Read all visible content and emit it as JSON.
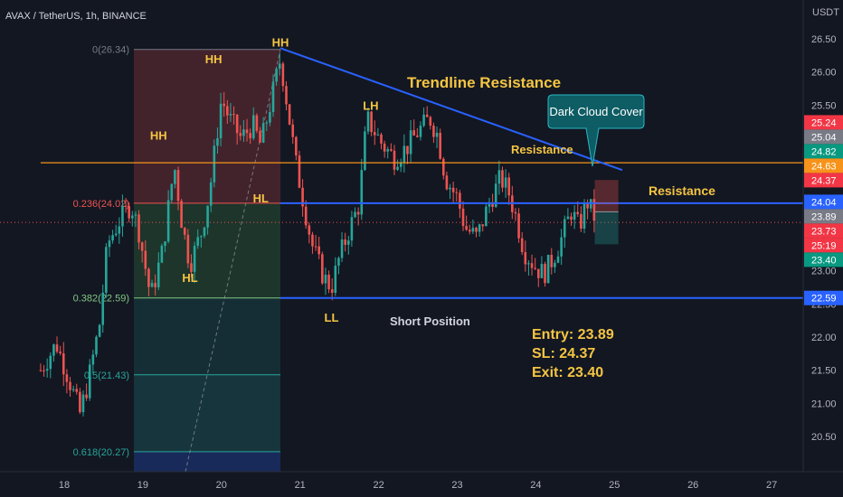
{
  "header": {
    "title": "AVAX / TetherUS, 1h, BINANCE"
  },
  "axis": {
    "unit": "USDT"
  },
  "colors": {
    "bg": "#131722",
    "up": "#26a69a",
    "down": "#ef5350",
    "trendline": "#2962ff",
    "orange": "#f7931a",
    "annotation": "#f5c542",
    "callout": "#0e5c64"
  },
  "chart_data": {
    "type": "candlestick",
    "ylim": [
      20.2,
      26.75
    ],
    "y_ticks": [
      "26.50",
      "26.00",
      "25.50",
      "25.00",
      "24.50",
      "24.00",
      "23.50",
      "23.00",
      "22.50",
      "22.00",
      "21.50",
      "21.00",
      "20.50"
    ],
    "x_ticks": [
      "18",
      "19",
      "20",
      "21",
      "22",
      "23",
      "24",
      "25",
      "26",
      "27"
    ],
    "x_range_days": [
      17.7,
      27.45
    ],
    "fib_levels": [
      {
        "label": "0(26.34)",
        "value": 26.34,
        "color": "#787b86"
      },
      {
        "label": "0.236(24.02)",
        "value": 24.02,
        "color": "#ef5350"
      },
      {
        "label": "0.382(22.59)",
        "value": 22.59,
        "color": "#81c784"
      },
      {
        "label": "0.5(21.43)",
        "value": 21.43,
        "color": "#26a69a"
      },
      {
        "label": "0.618(20.27)",
        "value": 20.27,
        "color": "#26a69a"
      }
    ],
    "trendline": {
      "start": {
        "day": 20.75,
        "price": 26.36
      },
      "end": {
        "day": 25.1,
        "price": 24.52
      }
    },
    "horizontal_lines": [
      {
        "name": "resistance",
        "value": 24.02,
        "color": "#2962ff",
        "from_day": 20.75
      },
      {
        "name": "support",
        "value": 22.59,
        "color": "#2962ff",
        "from_day": 20.75
      },
      {
        "name": "orange-level",
        "value": 24.63,
        "color": "#f7931a",
        "from_day": 17.7
      }
    ],
    "position": {
      "type": "Short Position",
      "entry": 23.89,
      "stop_loss": 24.37,
      "target": 23.4,
      "from_day": 24.75,
      "to_day": 25.05
    },
    "price_badges": [
      {
        "label": "25.24",
        "value": 25.24,
        "color": "#f23645"
      },
      {
        "label": "25.04",
        "value": 25.04,
        "color": "#787b86"
      },
      {
        "label": "24.82",
        "value": 24.82,
        "color": "#089981"
      },
      {
        "label": "24.63",
        "value": 24.63,
        "color": "#f7931a"
      },
      {
        "label": "24.37",
        "value": 24.37,
        "color": "#f23645"
      },
      {
        "label": "24.04",
        "value": 24.04,
        "color": "#2962ff"
      },
      {
        "label": "23.89",
        "value": 23.89,
        "color": "#787b86"
      },
      {
        "label": "23.73",
        "value": 23.73,
        "color": "#f23645"
      },
      {
        "label": "25:19",
        "value": 23.58,
        "color": "#f23645"
      },
      {
        "label": "23.40",
        "value": 23.4,
        "color": "#089981"
      },
      {
        "label": "22.59",
        "value": 22.59,
        "color": "#2962ff"
      }
    ],
    "swing_labels": [
      {
        "text": "HH",
        "day": 19.9,
        "price": 26.2
      },
      {
        "text": "HH",
        "day": 20.75,
        "price": 26.45
      },
      {
        "text": "HH",
        "day": 19.2,
        "price": 25.05
      },
      {
        "text": "HL",
        "day": 20.5,
        "price": 24.1
      },
      {
        "text": "HL",
        "day": 19.6,
        "price": 22.9
      },
      {
        "text": "LH",
        "day": 21.9,
        "price": 25.5
      },
      {
        "text": "LL",
        "day": 21.4,
        "price": 22.3
      }
    ],
    "key_points": [
      {
        "day": 17.7,
        "price": 21.5
      },
      {
        "day": 17.9,
        "price": 21.9
      },
      {
        "day": 18.05,
        "price": 21.4
      },
      {
        "day": 18.2,
        "price": 20.85
      },
      {
        "day": 18.3,
        "price": 21.3
      },
      {
        "day": 18.45,
        "price": 22.2
      },
      {
        "day": 18.55,
        "price": 23.4
      },
      {
        "day": 18.7,
        "price": 23.75
      },
      {
        "day": 18.85,
        "price": 24.0
      },
      {
        "day": 18.95,
        "price": 23.6
      },
      {
        "day": 19.1,
        "price": 22.6
      },
      {
        "day": 19.25,
        "price": 23.3
      },
      {
        "day": 19.4,
        "price": 24.6
      },
      {
        "day": 19.5,
        "price": 23.7
      },
      {
        "day": 19.6,
        "price": 23.1
      },
      {
        "day": 19.75,
        "price": 23.6
      },
      {
        "day": 19.85,
        "price": 24.2
      },
      {
        "day": 20.0,
        "price": 25.6
      },
      {
        "day": 20.1,
        "price": 25.3
      },
      {
        "day": 20.25,
        "price": 25.0
      },
      {
        "day": 20.4,
        "price": 25.2
      },
      {
        "day": 20.5,
        "price": 24.9
      },
      {
        "day": 20.6,
        "price": 25.4
      },
      {
        "day": 20.75,
        "price": 26.2
      },
      {
        "day": 20.85,
        "price": 25.4
      },
      {
        "day": 20.95,
        "price": 24.6
      },
      {
        "day": 21.05,
        "price": 24.0
      },
      {
        "day": 21.15,
        "price": 23.4
      },
      {
        "day": 21.3,
        "price": 22.9
      },
      {
        "day": 21.4,
        "price": 22.75
      },
      {
        "day": 21.5,
        "price": 23.2
      },
      {
        "day": 21.65,
        "price": 23.7
      },
      {
        "day": 21.75,
        "price": 24.0
      },
      {
        "day": 21.85,
        "price": 25.3
      },
      {
        "day": 21.95,
        "price": 25.1
      },
      {
        "day": 22.05,
        "price": 24.9
      },
      {
        "day": 22.2,
        "price": 24.7
      },
      {
        "day": 22.35,
        "price": 24.85
      },
      {
        "day": 22.5,
        "price": 25.1
      },
      {
        "day": 22.65,
        "price": 25.3
      },
      {
        "day": 22.75,
        "price": 25.05
      },
      {
        "day": 22.85,
        "price": 24.4
      },
      {
        "day": 23.0,
        "price": 24.1
      },
      {
        "day": 23.1,
        "price": 23.65
      },
      {
        "day": 23.25,
        "price": 23.5
      },
      {
        "day": 23.4,
        "price": 24.0
      },
      {
        "day": 23.55,
        "price": 24.4
      },
      {
        "day": 23.65,
        "price": 24.2
      },
      {
        "day": 23.75,
        "price": 23.8
      },
      {
        "day": 23.85,
        "price": 23.3
      },
      {
        "day": 24.0,
        "price": 23.05
      },
      {
        "day": 24.1,
        "price": 22.95
      },
      {
        "day": 24.2,
        "price": 23.15
      },
      {
        "day": 24.3,
        "price": 23.4
      },
      {
        "day": 24.45,
        "price": 23.9
      },
      {
        "day": 24.55,
        "price": 23.65
      },
      {
        "day": 24.65,
        "price": 24.05
      },
      {
        "day": 24.75,
        "price": 23.8
      }
    ]
  },
  "annotations": {
    "trendline_label": "Trendline Resistance",
    "resistance_upper": "Resistance",
    "resistance_lower": "Resistance",
    "short_position": "Short Position",
    "callout": "Dark Cloud Cover",
    "entry": "Entry: 23.89",
    "sl": "SL: 24.37",
    "exit": "Exit: 23.40"
  }
}
